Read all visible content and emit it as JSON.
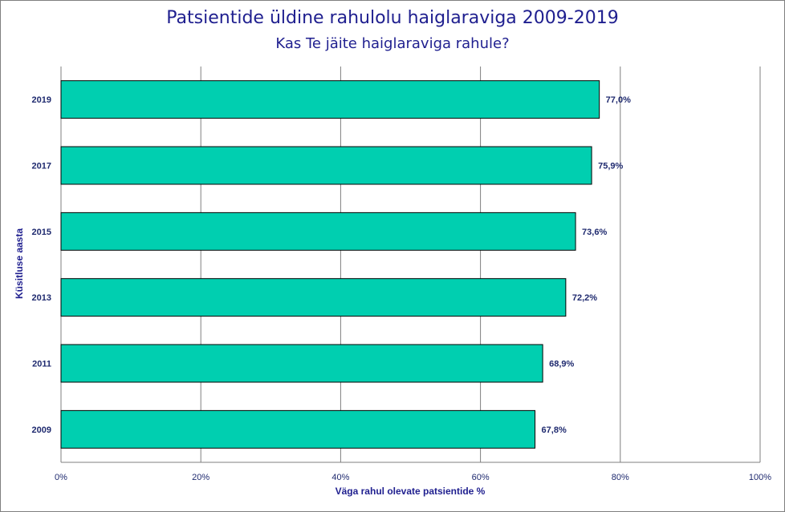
{
  "chart_data": {
    "type": "bar",
    "orientation": "horizontal",
    "title": "Patsientide üldine rahulolu haiglaraviga 2009-2019",
    "subtitle": "Kas Te jäite haiglaraviga rahule?",
    "xlabel": "Väga rahul olevate patsientide %",
    "ylabel": "Küsitluse aasta",
    "categories": [
      "2019",
      "2017",
      "2015",
      "2013",
      "2011",
      "2009"
    ],
    "values": [
      77.0,
      75.9,
      73.6,
      72.2,
      68.9,
      67.8
    ],
    "data_labels": [
      "77,0%",
      "75,9%",
      "73,6%",
      "72,2%",
      "68,9%",
      "67,8%"
    ],
    "xlim": [
      0,
      100
    ],
    "x_ticks": [
      0,
      20,
      40,
      60,
      80,
      100
    ],
    "x_tick_labels": [
      "0%",
      "20%",
      "40%",
      "60%",
      "80%",
      "100%"
    ],
    "grid": "vertical",
    "legend": "none",
    "colors": {
      "bar": "#00cfb0",
      "bar_outline": "#000000",
      "text": "#1f1f8f",
      "grid": "#7f7f7f"
    }
  }
}
